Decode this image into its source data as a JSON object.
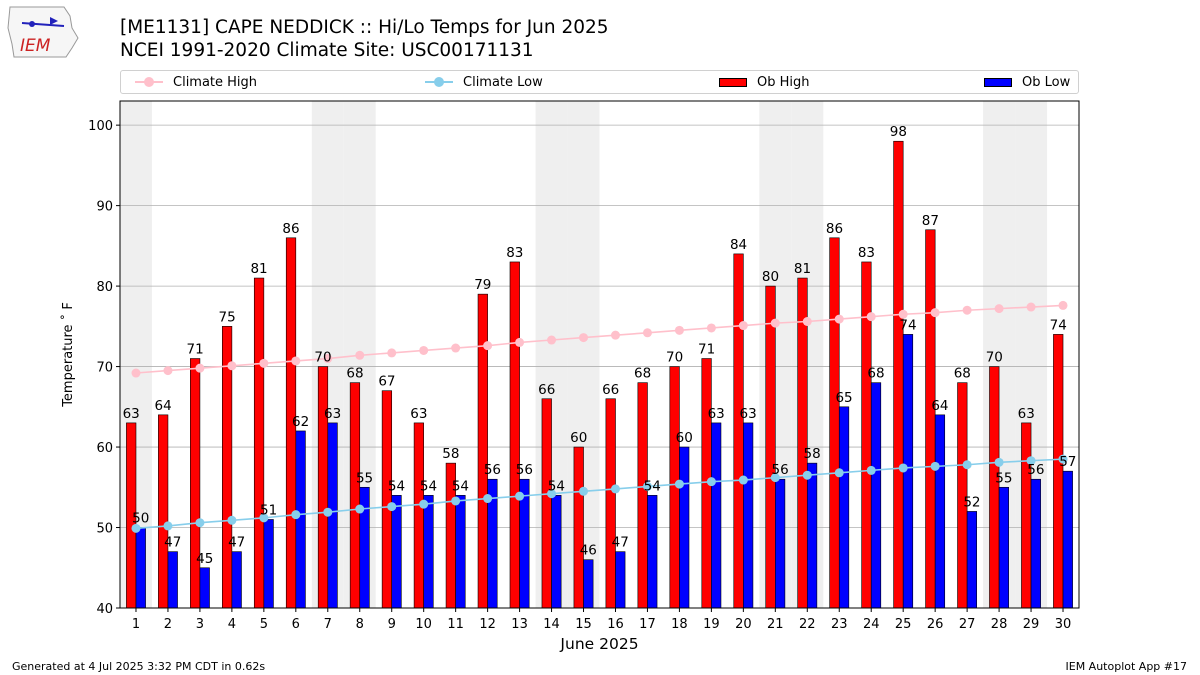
{
  "logo": {
    "text": "IEM"
  },
  "header": {
    "title_line1": "[ME1131] CAPE NEDDICK :: Hi/Lo Temps for Jun 2025",
    "title_line2": "NCEI 1991-2020 Climate Site: USC00171131"
  },
  "legend": {
    "items": [
      {
        "label": "Climate High",
        "kind": "line",
        "color": "#ffc0cb"
      },
      {
        "label": "Climate Low",
        "kind": "line",
        "color": "#87ceeb"
      },
      {
        "label": "Ob High",
        "kind": "bar",
        "color": "#ff0000"
      },
      {
        "label": "Ob Low",
        "kind": "bar",
        "color": "#0000ff"
      }
    ]
  },
  "chart_data": {
    "type": "bar",
    "xlabel": "June 2025",
    "ylabel": "Temperature ˚ F",
    "ylim": [
      40,
      103
    ],
    "yticks": [
      40,
      50,
      60,
      70,
      80,
      90,
      100
    ],
    "grid": true,
    "legend_position": "top",
    "categories": [
      "1",
      "2",
      "3",
      "4",
      "5",
      "6",
      "7",
      "8",
      "9",
      "10",
      "11",
      "12",
      "13",
      "14",
      "15",
      "16",
      "17",
      "18",
      "19",
      "20",
      "21",
      "22",
      "23",
      "24",
      "25",
      "26",
      "27",
      "28",
      "29",
      "30"
    ],
    "weekend_shading_days": [
      1,
      7,
      8,
      14,
      15,
      21,
      22,
      28,
      29
    ],
    "series": [
      {
        "name": "Ob High",
        "type": "bar",
        "color": "#ff0000",
        "values": [
          63,
          64,
          71,
          75,
          81,
          86,
          70,
          68,
          67,
          63,
          58,
          79,
          83,
          66,
          60,
          66,
          68,
          70,
          71,
          84,
          80,
          81,
          86,
          83,
          98,
          87,
          68,
          70,
          63,
          74
        ]
      },
      {
        "name": "Ob Low",
        "type": "bar",
        "color": "#0000ff",
        "values": [
          50,
          47,
          45,
          47,
          51,
          62,
          63,
          55,
          54,
          54,
          54,
          56,
          56,
          54,
          46,
          47,
          54,
          60,
          63,
          63,
          56,
          58,
          65,
          68,
          74,
          64,
          52,
          55,
          56,
          57
        ]
      },
      {
        "name": "Climate High",
        "type": "line",
        "color": "#ffc0cb",
        "values": [
          69.2,
          69.5,
          69.8,
          70.1,
          70.4,
          70.7,
          71.0,
          71.4,
          71.7,
          72.0,
          72.3,
          72.6,
          73.0,
          73.3,
          73.6,
          73.9,
          74.2,
          74.5,
          74.8,
          75.1,
          75.4,
          75.6,
          75.9,
          76.2,
          76.5,
          76.7,
          77.0,
          77.2,
          77.4,
          77.6
        ]
      },
      {
        "name": "Climate Low",
        "type": "line",
        "color": "#87ceeb",
        "values": [
          49.9,
          50.2,
          50.6,
          50.9,
          51.2,
          51.6,
          51.9,
          52.3,
          52.6,
          52.9,
          53.3,
          53.6,
          53.9,
          54.2,
          54.5,
          54.8,
          55.1,
          55.4,
          55.7,
          55.9,
          56.2,
          56.5,
          56.8,
          57.1,
          57.4,
          57.6,
          57.8,
          58.1,
          58.3,
          58.5
        ]
      }
    ]
  },
  "footer": {
    "generated": "Generated at 4 Jul 2025 3:32 PM CDT in 0.62s",
    "app": "IEM Autoplot App #17"
  }
}
